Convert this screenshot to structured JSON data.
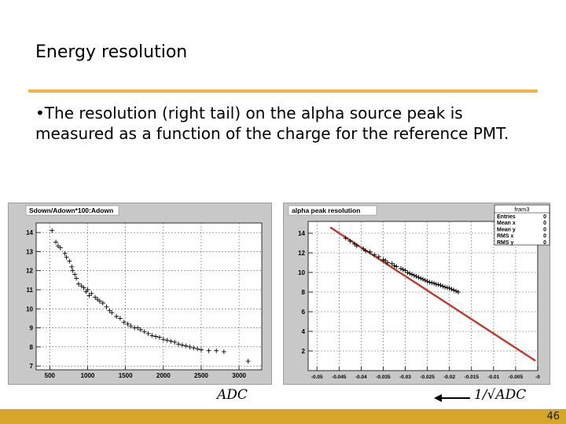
{
  "slide": {
    "title": "Energy resolution",
    "bullet": "•The resolution (right tail) on the alpha source peak is measured as a function of the charge for the reference PMT.",
    "page_number": "46",
    "accent_color": "#f0b445",
    "footer_color": "#d6a628"
  },
  "chart_data": [
    {
      "type": "scatter",
      "title": "Sdown/Adown*100:Adown",
      "xlabel": "ADC",
      "ylabel": "",
      "xlim": [
        320,
        3300
      ],
      "ylim": [
        6.8,
        14.5
      ],
      "x_ticks": [
        "500",
        "1000",
        "1500",
        "2000",
        "2500",
        "3000"
      ],
      "y_ticks": [
        "7",
        "8",
        "9",
        "10",
        "11",
        "12",
        "13",
        "14"
      ],
      "grid": true,
      "points": [
        [
          530,
          14.1
        ],
        [
          580,
          13.5
        ],
        [
          610,
          13.3
        ],
        [
          640,
          13.2
        ],
        [
          700,
          12.9
        ],
        [
          720,
          12.7
        ],
        [
          760,
          12.5
        ],
        [
          790,
          12.2
        ],
        [
          800,
          12.0
        ],
        [
          830,
          11.8
        ],
        [
          850,
          11.6
        ],
        [
          880,
          11.3
        ],
        [
          920,
          11.2
        ],
        [
          950,
          11.1
        ],
        [
          980,
          10.9
        ],
        [
          1000,
          11.0
        ],
        [
          1020,
          10.7
        ],
        [
          1050,
          10.8
        ],
        [
          1100,
          10.6
        ],
        [
          1130,
          10.5
        ],
        [
          1160,
          10.4
        ],
        [
          1200,
          10.3
        ],
        [
          1250,
          10.1
        ],
        [
          1290,
          9.9
        ],
        [
          1320,
          9.8
        ],
        [
          1380,
          9.6
        ],
        [
          1430,
          9.5
        ],
        [
          1480,
          9.3
        ],
        [
          1530,
          9.2
        ],
        [
          1570,
          9.1
        ],
        [
          1620,
          9.0
        ],
        [
          1660,
          9.0
        ],
        [
          1700,
          8.9
        ],
        [
          1750,
          8.8
        ],
        [
          1800,
          8.7
        ],
        [
          1850,
          8.6
        ],
        [
          1900,
          8.55
        ],
        [
          1950,
          8.5
        ],
        [
          2000,
          8.4
        ],
        [
          2050,
          8.35
        ],
        [
          2100,
          8.3
        ],
        [
          2150,
          8.25
        ],
        [
          2200,
          8.15
        ],
        [
          2250,
          8.1
        ],
        [
          2300,
          8.05
        ],
        [
          2350,
          8.0
        ],
        [
          2400,
          7.95
        ],
        [
          2450,
          7.9
        ],
        [
          2500,
          7.85
        ],
        [
          2600,
          7.8
        ],
        [
          2700,
          7.8
        ],
        [
          2800,
          7.75
        ],
        [
          3120,
          7.25
        ]
      ]
    },
    {
      "type": "scatter",
      "title": "alpha peak resolution",
      "xlabel": "1/√ADC",
      "ylabel": "",
      "xlim": [
        -0.052,
        0.0
      ],
      "ylim": [
        0,
        15.2
      ],
      "x_ticks": [
        "-0.05",
        "-0.045",
        "-0.04",
        "-0.035",
        "-0.03",
        "-0.025",
        "-0.02",
        "-0.015",
        "-0.01",
        "-0.005",
        "-0"
      ],
      "y_ticks": [
        "2",
        "4",
        "6",
        "8",
        "10",
        "12",
        "14"
      ],
      "grid": true,
      "fit_line": {
        "x": [
          -0.047,
          -0.0005
        ],
        "y": [
          14.6,
          1.0
        ],
        "color": "#c0392b"
      },
      "stats_box": {
        "title": "fram3",
        "rows": [
          {
            "label": "Entries",
            "value": "0"
          },
          {
            "label": "Mean x",
            "value": "0"
          },
          {
            "label": "Mean y",
            "value": "0"
          },
          {
            "label": "RMS x",
            "value": "0"
          },
          {
            "label": "RMS y",
            "value": "0"
          }
        ]
      },
      "points": [
        [
          -0.0435,
          13.5
        ],
        [
          -0.0425,
          13.2
        ],
        [
          -0.0415,
          12.9
        ],
        [
          -0.041,
          12.7
        ],
        [
          -0.0395,
          12.4
        ],
        [
          -0.039,
          12.2
        ],
        [
          -0.038,
          12.1
        ],
        [
          -0.037,
          11.8
        ],
        [
          -0.036,
          11.6
        ],
        [
          -0.035,
          11.3
        ],
        [
          -0.0345,
          11.2
        ],
        [
          -0.034,
          11.0
        ],
        [
          -0.033,
          10.9
        ],
        [
          -0.0325,
          10.7
        ],
        [
          -0.032,
          10.6
        ],
        [
          -0.031,
          10.4
        ],
        [
          -0.0305,
          10.3
        ],
        [
          -0.03,
          10.2
        ],
        [
          -0.0295,
          10.0
        ],
        [
          -0.029,
          9.9
        ],
        [
          -0.0285,
          9.8
        ],
        [
          -0.028,
          9.7
        ],
        [
          -0.0275,
          9.6
        ],
        [
          -0.027,
          9.5
        ],
        [
          -0.0265,
          9.4
        ],
        [
          -0.026,
          9.3
        ],
        [
          -0.0255,
          9.2
        ],
        [
          -0.025,
          9.1
        ],
        [
          -0.0245,
          9.0
        ],
        [
          -0.024,
          8.95
        ],
        [
          -0.0235,
          8.9
        ],
        [
          -0.023,
          8.8
        ],
        [
          -0.0225,
          8.75
        ],
        [
          -0.022,
          8.7
        ],
        [
          -0.0215,
          8.6
        ],
        [
          -0.021,
          8.5
        ],
        [
          -0.0205,
          8.45
        ],
        [
          -0.02,
          8.4
        ],
        [
          -0.0195,
          8.3
        ],
        [
          -0.019,
          8.2
        ],
        [
          -0.0185,
          8.1
        ],
        [
          -0.018,
          8.0
        ]
      ]
    }
  ]
}
